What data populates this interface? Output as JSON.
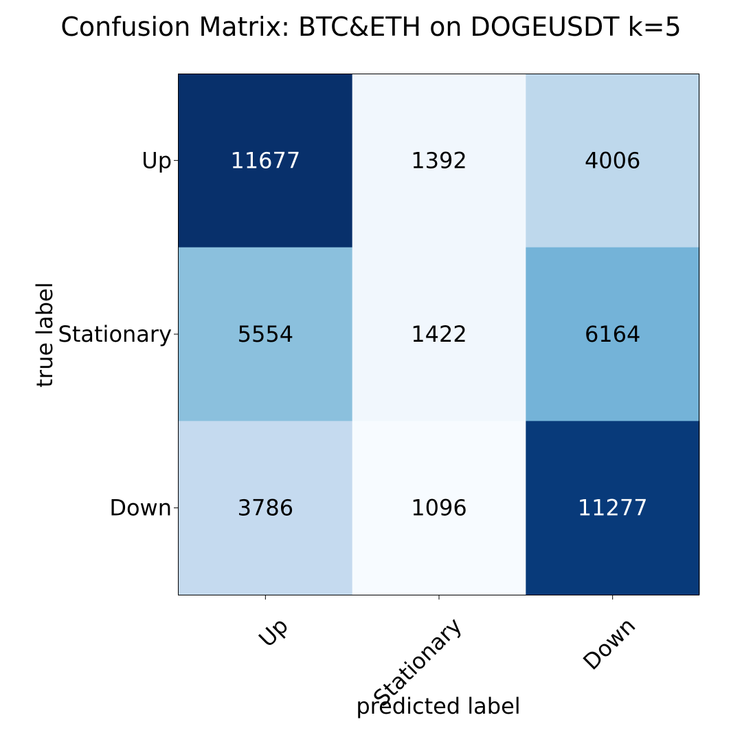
{
  "chart_data": {
    "type": "heatmap",
    "title": "Confusion Matrix: BTC&ETH on DOGEUSDT k=5",
    "xlabel": "predicted label",
    "ylabel": "true label",
    "x_categories": [
      "Up",
      "Stationary",
      "Down"
    ],
    "y_categories": [
      "Up",
      "Stationary",
      "Down"
    ],
    "values": [
      [
        11677,
        1392,
        4006
      ],
      [
        5554,
        1422,
        6164
      ],
      [
        3786,
        1096,
        11277
      ]
    ],
    "colormap": "Blues",
    "colorscale_range": [
      1096,
      11677
    ],
    "text_color_dark": "#000000",
    "text_color_light": "#ffffff",
    "grid": false
  }
}
